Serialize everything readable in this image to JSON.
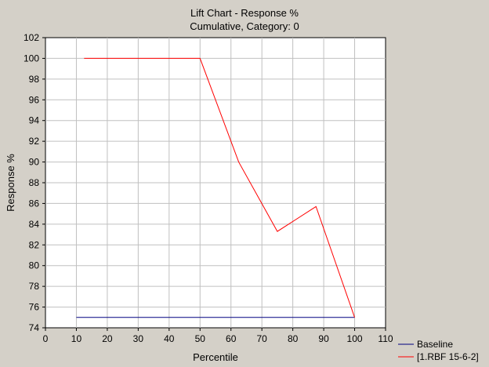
{
  "chart_data": {
    "type": "line",
    "title": "Lift Chart - Response %",
    "subtitle": "Cumulative, Category: 0",
    "xlabel": "Percentile",
    "ylabel": "Response %",
    "xlim": [
      0,
      110
    ],
    "ylim": [
      74,
      102
    ],
    "xticks": [
      "0",
      "10",
      "20",
      "30",
      "40",
      "50",
      "60",
      "70",
      "80",
      "90",
      "100",
      "110"
    ],
    "yticks": [
      "74",
      "76",
      "78",
      "80",
      "82",
      "84",
      "86",
      "88",
      "90",
      "92",
      "94",
      "96",
      "98",
      "100",
      "102"
    ],
    "grid": true,
    "legend_position": "bottom-right",
    "series": [
      {
        "name": "Baseline",
        "color": "#000080",
        "x": [
          10,
          100
        ],
        "y": [
          75,
          75
        ]
      },
      {
        "name": "[1.RBF 15-6-2]",
        "color": "#ff0000",
        "x": [
          12.5,
          25,
          37.5,
          50,
          62.5,
          75,
          87.5,
          100
        ],
        "y": [
          100,
          100,
          100,
          100,
          90,
          83.3,
          85.7,
          75
        ]
      }
    ]
  }
}
